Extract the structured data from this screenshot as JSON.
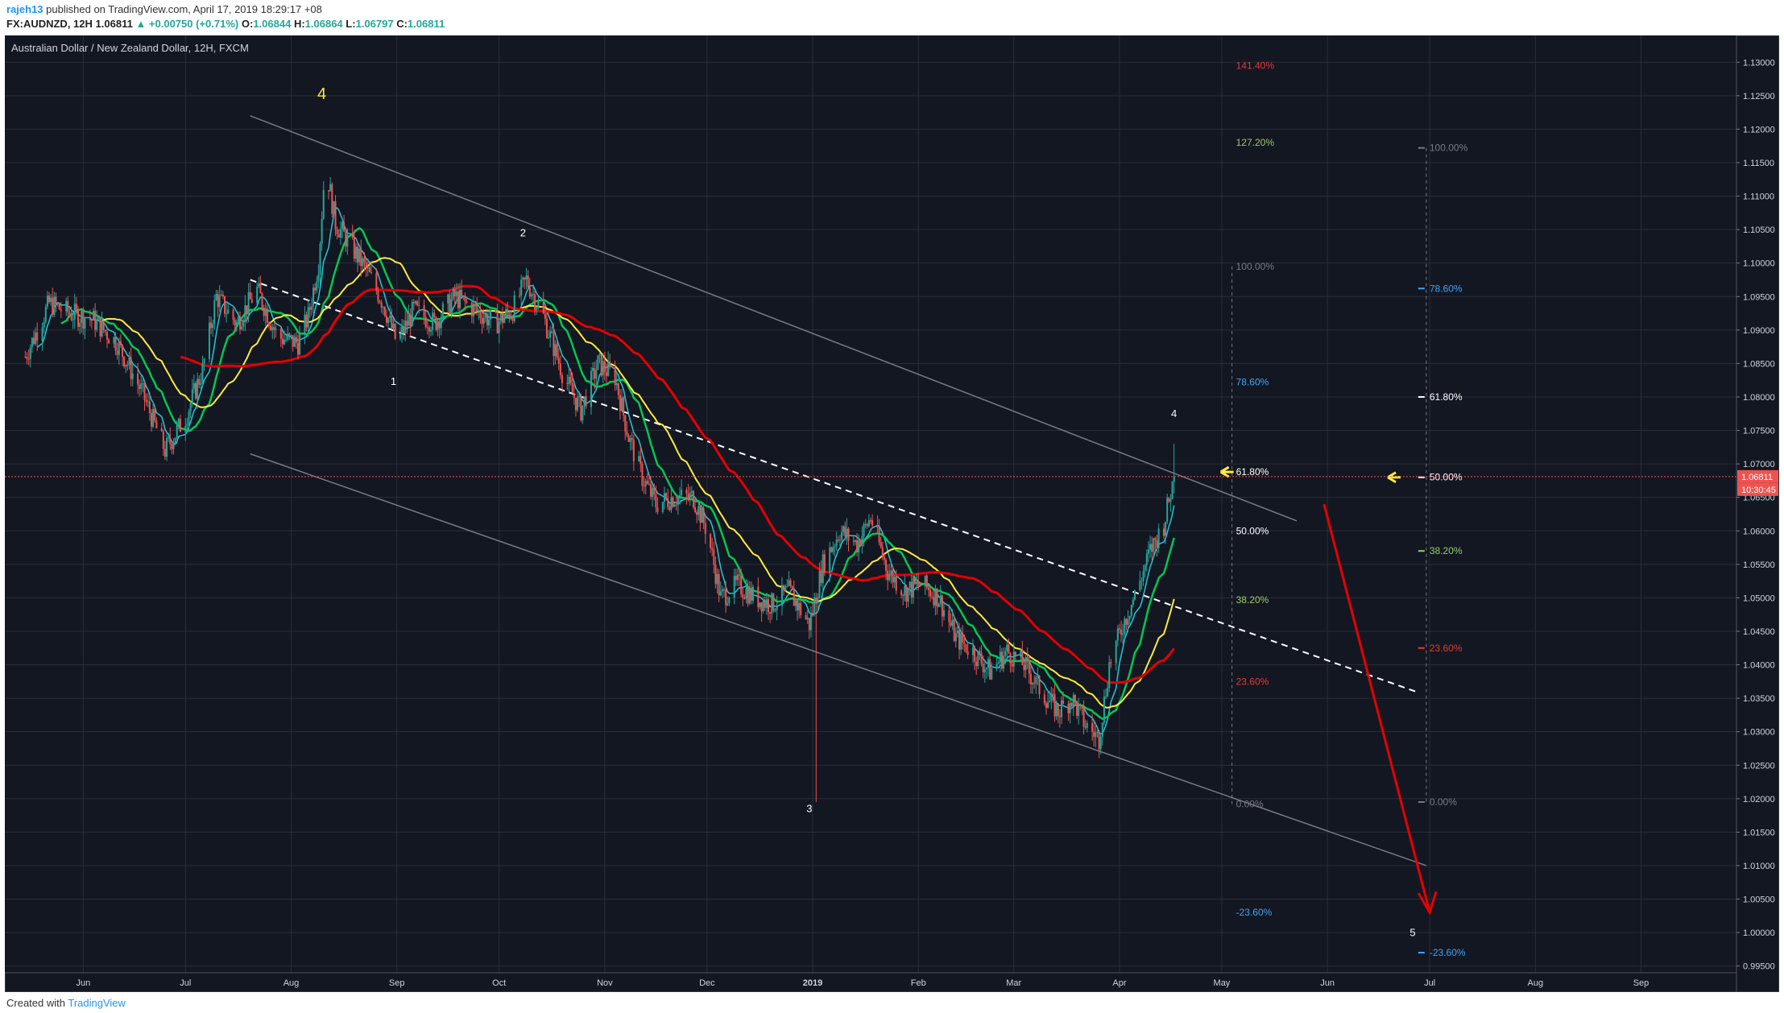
{
  "header": {
    "user": "rajeh13",
    "published": "published on TradingView.com, April 17, 2019 18:29:17 +08",
    "symbol": "FX:AUDNZD, 12H",
    "last": "1.06811",
    "change": "▲ +0.00750 (+0.71%)",
    "o_label": "O:",
    "o": "1.06844",
    "h_label": "H:",
    "h": "1.06864",
    "l_label": "L:",
    "l": "1.06797",
    "c_label": "C:",
    "c": "1.06811"
  },
  "footer": {
    "created": "Created with",
    "brand": "TradingView"
  },
  "colors": {
    "background": "#131722",
    "grid": "#2a2e39",
    "up": "#26a69a",
    "down": "#ef5350",
    "ma_fast": "#26c6da",
    "ma_green": "#00c853",
    "ma_yellow": "#ffeb3b",
    "ma_red": "#e50000",
    "channel": "#787b86",
    "forecast": "#e50000"
  },
  "chart_data": {
    "type": "candlestick",
    "title": "Australian Dollar / New Zealand Dollar, 12H, FXCM",
    "x_ticks": [
      "Jun",
      "Jul",
      "Aug",
      "Sep",
      "Oct",
      "Nov",
      "Dec",
      "2019",
      "Feb",
      "Mar",
      "Apr",
      "May",
      "Jun",
      "Jul",
      "Aug",
      "Sep"
    ],
    "y_ticks": [
      "1.13000",
      "1.12500",
      "1.12000",
      "1.11500",
      "1.11000",
      "1.10500",
      "1.10000",
      "1.09500",
      "1.09000",
      "1.08500",
      "1.08000",
      "1.07500",
      "1.07000",
      "1.06500",
      "1.06000",
      "1.05500",
      "1.05000",
      "1.04500",
      "1.04000",
      "1.03500",
      "1.03000",
      "1.02500",
      "1.02000",
      "1.01500",
      "1.01000",
      "1.00500",
      "1.00000",
      "0.99500"
    ],
    "y_range": [
      0.994,
      1.134
    ],
    "price_label": "1.06811",
    "countdown_label": "10:30:45",
    "wave_labels": [
      {
        "label": "4",
        "date": "2018-08-10",
        "price": 1.1245
      },
      {
        "label": "2",
        "date": "2018-10-08",
        "price": 1.104
      },
      {
        "label": "1",
        "date": "2018-08-31",
        "price": 1.0818
      },
      {
        "label": "3",
        "date": "2018-12-31",
        "price": 1.018
      },
      {
        "label": "4",
        "date": "2019-04-17",
        "price": 1.077
      },
      {
        "label": "5",
        "date": "2019-06-26",
        "price": 0.9995
      }
    ],
    "fib_left": [
      {
        "label": "141.40%",
        "price": 1.1295
      },
      {
        "label": "127.20%",
        "price": 1.118
      },
      {
        "label": "100.00%",
        "price": 1.0995
      },
      {
        "label": "78.60%",
        "price": 1.0822
      },
      {
        "label": "61.80%",
        "price": 1.0688
      },
      {
        "label": "50.00%",
        "price": 1.06
      },
      {
        "label": "38.20%",
        "price": 1.0497
      },
      {
        "label": "23.60%",
        "price": 1.0375
      },
      {
        "label": "0.00%",
        "price": 1.0192
      },
      {
        "label": "-23.60%",
        "price": 1.003
      }
    ],
    "fib_right": [
      {
        "label": "100.00%",
        "price": 1.1172
      },
      {
        "label": "78.60%",
        "price": 1.0962
      },
      {
        "label": "61.80%",
        "price": 1.08
      },
      {
        "label": "50.00%",
        "price": 1.068
      },
      {
        "label": "38.20%",
        "price": 1.057
      },
      {
        "label": "23.60%",
        "price": 1.0425
      },
      {
        "label": "0.00%",
        "price": 1.0195
      },
      {
        "label": "-23.60%",
        "price": 0.997
      }
    ],
    "candles_path": [
      [
        "2018-05-15",
        1.086
      ],
      [
        "2018-05-22",
        1.094
      ],
      [
        "2018-05-28",
        1.0925
      ],
      [
        "2018-06-04",
        1.0915
      ],
      [
        "2018-06-11",
        1.088
      ],
      [
        "2018-06-18",
        1.081
      ],
      [
        "2018-06-25",
        1.072
      ],
      [
        "2018-07-01",
        1.077
      ],
      [
        "2018-07-06",
        1.084
      ],
      [
        "2018-07-10",
        1.095
      ],
      [
        "2018-07-16",
        1.091
      ],
      [
        "2018-07-22",
        1.096
      ],
      [
        "2018-07-28",
        1.089
      ],
      [
        "2018-08-03",
        1.088
      ],
      [
        "2018-08-06",
        1.092
      ],
      [
        "2018-08-09",
        1.1
      ],
      [
        "2018-08-11",
        1.115
      ],
      [
        "2018-08-14",
        1.106
      ],
      [
        "2018-08-18",
        1.103
      ],
      [
        "2018-08-23",
        1.099
      ],
      [
        "2018-08-28",
        1.094
      ],
      [
        "2018-09-01",
        1.088
      ],
      [
        "2018-09-06",
        1.093
      ],
      [
        "2018-09-12",
        1.091
      ],
      [
        "2018-09-18",
        1.095
      ],
      [
        "2018-09-24",
        1.093
      ],
      [
        "2018-09-30",
        1.091
      ],
      [
        "2018-10-05",
        1.093
      ],
      [
        "2018-10-09",
        1.0975
      ],
      [
        "2018-10-14",
        1.092
      ],
      [
        "2018-10-20",
        1.083
      ],
      [
        "2018-10-25",
        1.078
      ],
      [
        "2018-10-30",
        1.085
      ],
      [
        "2018-11-04",
        1.083
      ],
      [
        "2018-11-08",
        1.074
      ],
      [
        "2018-11-12",
        1.068
      ],
      [
        "2018-11-16",
        1.064
      ],
      [
        "2018-11-21",
        1.065
      ],
      [
        "2018-11-27",
        1.065
      ],
      [
        "2018-12-01",
        1.06
      ],
      [
        "2018-12-05",
        1.05
      ],
      [
        "2018-12-10",
        1.052
      ],
      [
        "2018-12-15",
        1.05
      ],
      [
        "2018-12-20",
        1.049
      ],
      [
        "2018-12-25",
        1.051
      ],
      [
        "2018-12-31",
        1.046
      ],
      [
        "2019-01-04",
        1.055
      ],
      [
        "2019-01-09",
        1.06
      ],
      [
        "2019-01-14",
        1.058
      ],
      [
        "2019-01-18",
        1.062
      ],
      [
        "2019-01-23",
        1.054
      ],
      [
        "2019-01-28",
        1.051
      ],
      [
        "2019-02-02",
        1.052
      ],
      [
        "2019-02-07",
        1.05
      ],
      [
        "2019-02-12",
        1.044
      ],
      [
        "2019-02-17",
        1.042
      ],
      [
        "2019-02-22",
        1.039
      ],
      [
        "2019-02-27",
        1.042
      ],
      [
        "2019-03-04",
        1.04
      ],
      [
        "2019-03-09",
        1.036
      ],
      [
        "2019-03-14",
        1.033
      ],
      [
        "2019-03-18",
        1.035
      ],
      [
        "2019-03-22",
        1.031
      ],
      [
        "2019-03-26",
        1.029
      ],
      [
        "2019-03-29",
        1.04
      ],
      [
        "2019-04-02",
        1.046
      ],
      [
        "2019-04-06",
        1.051
      ],
      [
        "2019-04-10",
        1.057
      ],
      [
        "2019-04-14",
        1.061
      ],
      [
        "2019-04-17",
        1.0681
      ]
    ]
  }
}
